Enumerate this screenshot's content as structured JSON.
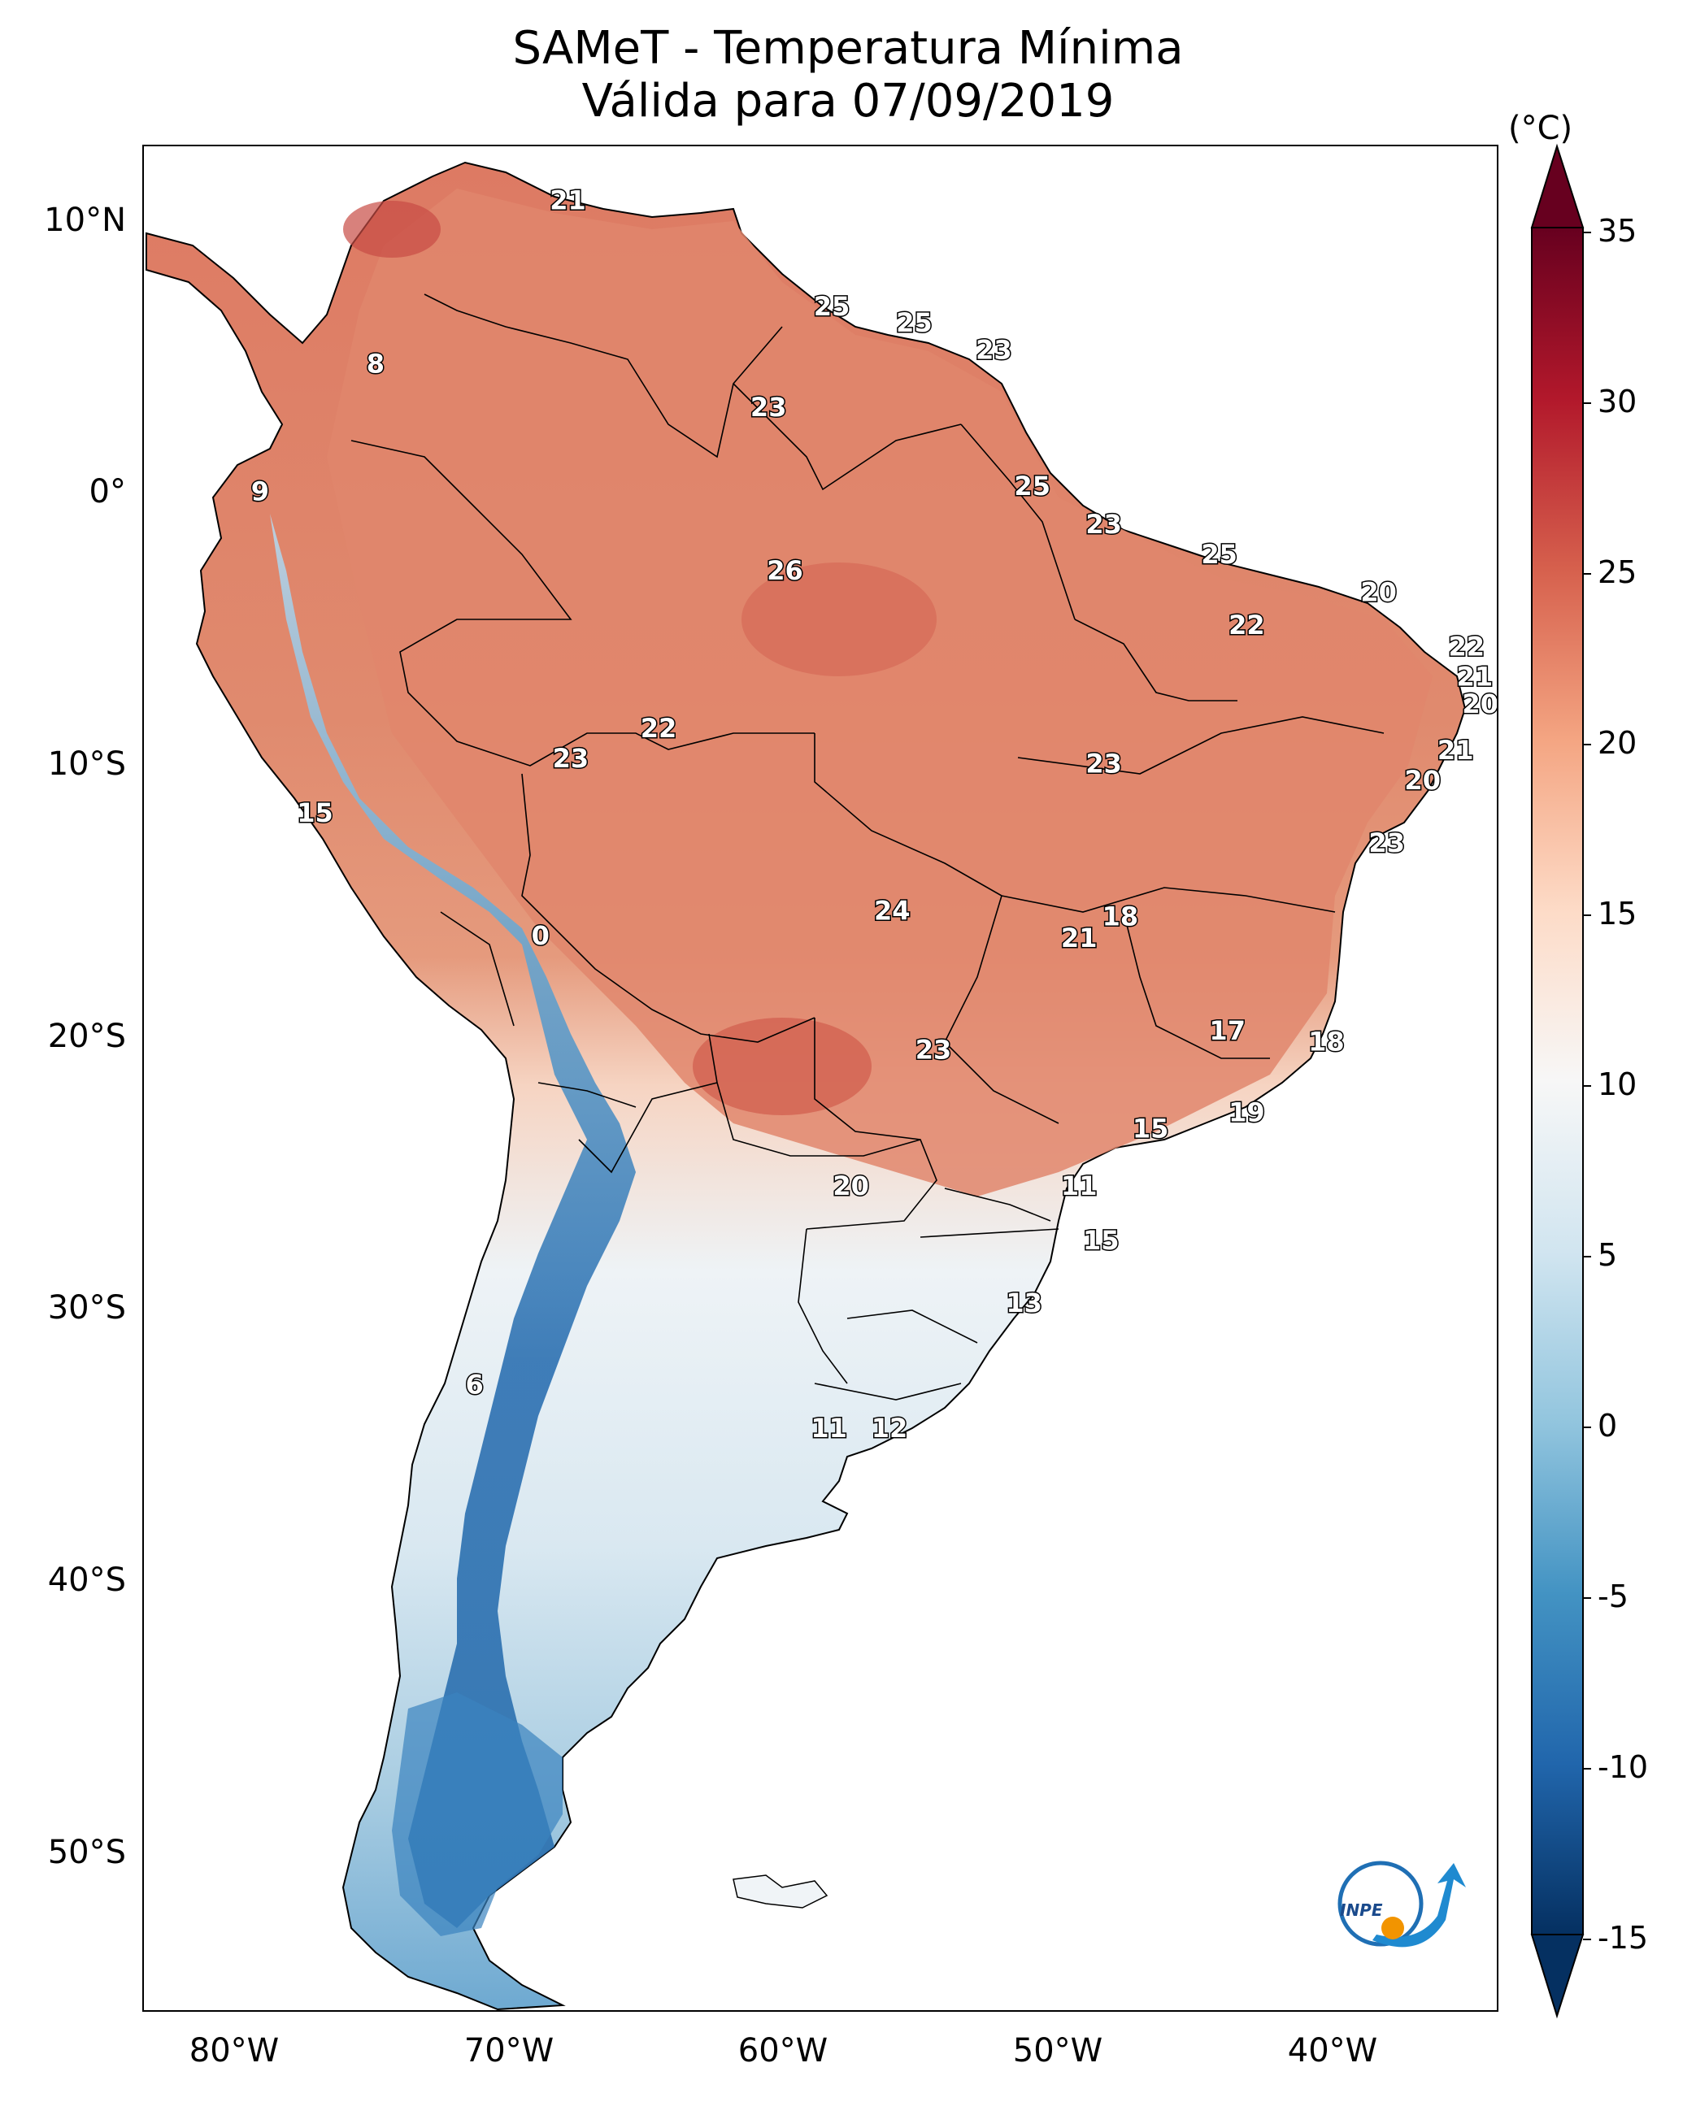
{
  "title": {
    "line1": "SAMeT - Temperatura Mínima",
    "line2": "Válida para 07/09/2019"
  },
  "colorbar": {
    "unit": "(°C)",
    "ticks": [
      "35",
      "30",
      "25",
      "20",
      "15",
      "10",
      "5",
      "0",
      "-5",
      "-10",
      "-15"
    ],
    "colors": [
      "#67001f",
      "#b2182b",
      "#d6604d",
      "#f4a582",
      "#fddbc7",
      "#f7f7f7",
      "#d1e5f0",
      "#92c5de",
      "#4393c3",
      "#2166ac",
      "#053061"
    ]
  },
  "axes": {
    "lat_labels": [
      "10°N",
      "0°",
      "10°S",
      "20°S",
      "30°S",
      "40°S",
      "50°S"
    ],
    "lon_labels": [
      "80°W",
      "70°W",
      "60°W",
      "50°W",
      "40°W"
    ]
  },
  "map_labels": [
    {
      "text": "21",
      "lon": -67.5,
      "lat": 10.5
    },
    {
      "text": "25",
      "lon": -57.9,
      "lat": 6.6
    },
    {
      "text": "25",
      "lon": -54.9,
      "lat": 6.0
    },
    {
      "text": "23",
      "lon": -52.0,
      "lat": 5.0
    },
    {
      "text": "8",
      "lon": -74.5,
      "lat": 4.5
    },
    {
      "text": "23",
      "lon": -60.2,
      "lat": 2.9
    },
    {
      "text": "9",
      "lon": -78.7,
      "lat": -0.2
    },
    {
      "text": "25",
      "lon": -50.6,
      "lat": 0.0
    },
    {
      "text": "23",
      "lon": -48.0,
      "lat": -1.4
    },
    {
      "text": "25",
      "lon": -43.8,
      "lat": -2.5
    },
    {
      "text": "26",
      "lon": -59.6,
      "lat": -3.1
    },
    {
      "text": "20",
      "lon": -38.0,
      "lat": -3.9
    },
    {
      "text": "22",
      "lon": -42.8,
      "lat": -5.1
    },
    {
      "text": "22",
      "lon": -34.8,
      "lat": -5.9
    },
    {
      "text": "21",
      "lon": -34.5,
      "lat": -7.0
    },
    {
      "text": "20",
      "lon": -34.3,
      "lat": -8.0
    },
    {
      "text": "22",
      "lon": -64.2,
      "lat": -8.9
    },
    {
      "text": "21",
      "lon": -35.2,
      "lat": -9.7
    },
    {
      "text": "23",
      "lon": -67.4,
      "lat": -10.0
    },
    {
      "text": "23",
      "lon": -48.0,
      "lat": -10.2
    },
    {
      "text": "20",
      "lon": -36.4,
      "lat": -10.8
    },
    {
      "text": "15",
      "lon": -76.7,
      "lat": -12.0
    },
    {
      "text": "23",
      "lon": -37.7,
      "lat": -13.1
    },
    {
      "text": "24",
      "lon": -55.7,
      "lat": -15.6
    },
    {
      "text": "18",
      "lon": -47.4,
      "lat": -15.8
    },
    {
      "text": "21",
      "lon": -48.9,
      "lat": -16.6
    },
    {
      "text": "0",
      "lon": -68.5,
      "lat": -16.5
    },
    {
      "text": "17",
      "lon": -43.5,
      "lat": -20.0
    },
    {
      "text": "18",
      "lon": -39.9,
      "lat": -20.4
    },
    {
      "text": "23",
      "lon": -54.2,
      "lat": -20.7
    },
    {
      "text": "19",
      "lon": -42.8,
      "lat": -23.0
    },
    {
      "text": "15",
      "lon": -46.3,
      "lat": -23.6
    },
    {
      "text": "20",
      "lon": -57.2,
      "lat": -25.7
    },
    {
      "text": "11",
      "lon": -48.9,
      "lat": -25.7
    },
    {
      "text": "15",
      "lon": -48.1,
      "lat": -27.7
    },
    {
      "text": "13",
      "lon": -50.9,
      "lat": -30.0
    },
    {
      "text": "6",
      "lon": -70.9,
      "lat": -33.0
    },
    {
      "text": "11",
      "lon": -58.0,
      "lat": -34.6
    },
    {
      "text": "12",
      "lon": -55.8,
      "lat": -34.6
    }
  ],
  "logo": {
    "text": "INPE"
  }
}
